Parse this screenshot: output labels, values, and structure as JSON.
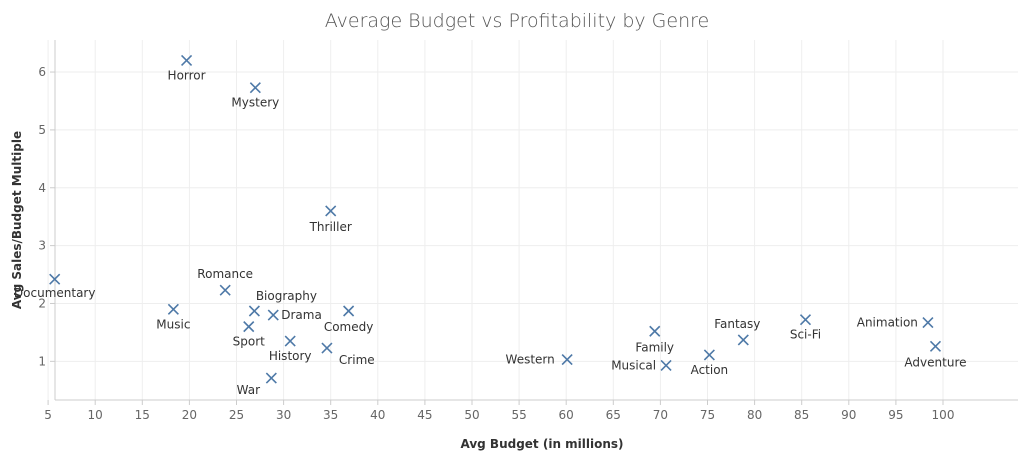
{
  "chart_data": {
    "type": "scatter",
    "title": "Average Budget vs Profitability by Genre",
    "xlabel": "Avg Budget (in millions)",
    "ylabel": "Avg Sales/Budget Multiple",
    "xlim": [
      0,
      103
    ],
    "ylim": [
      0.35,
      6.5
    ],
    "xticks": [
      5,
      10,
      15,
      20,
      25,
      30,
      35,
      40,
      45,
      50,
      55,
      60,
      65,
      70,
      75,
      80,
      85,
      90,
      95,
      100
    ],
    "yticks": [
      1,
      2,
      3,
      4,
      5,
      6
    ],
    "grid": true,
    "marker": "x",
    "marker_color": "#4e79a7",
    "points": [
      {
        "label": "Horror",
        "x": 19.7,
        "y": 6.2
      },
      {
        "label": "Mystery",
        "x": 27.0,
        "y": 5.73
      },
      {
        "label": "Thriller",
        "x": 35.0,
        "y": 3.6
      },
      {
        "label": "Documentary",
        "x": 5.7,
        "y": 2.42
      },
      {
        "label": "Romance",
        "x": 23.8,
        "y": 2.23
      },
      {
        "label": "Music",
        "x": 18.3,
        "y": 1.9
      },
      {
        "label": "Biography",
        "x": 26.9,
        "y": 1.87
      },
      {
        "label": "Drama",
        "x": 28.9,
        "y": 1.8
      },
      {
        "label": "Comedy",
        "x": 36.9,
        "y": 1.87
      },
      {
        "label": "Sport",
        "x": 26.3,
        "y": 1.6
      },
      {
        "label": "History",
        "x": 30.7,
        "y": 1.35
      },
      {
        "label": "Crime",
        "x": 34.6,
        "y": 1.23
      },
      {
        "label": "War",
        "x": 28.7,
        "y": 0.71
      },
      {
        "label": "Western",
        "x": 60.1,
        "y": 1.03
      },
      {
        "label": "Family",
        "x": 69.4,
        "y": 1.52
      },
      {
        "label": "Musical",
        "x": 70.6,
        "y": 0.93
      },
      {
        "label": "Action",
        "x": 75.2,
        "y": 1.11
      },
      {
        "label": "Fantasy",
        "x": 78.8,
        "y": 1.37
      },
      {
        "label": "Sci-Fi",
        "x": 85.4,
        "y": 1.72
      },
      {
        "label": "Animation",
        "x": 98.4,
        "y": 1.67
      },
      {
        "label": "Adventure",
        "x": 99.2,
        "y": 1.26
      }
    ]
  }
}
